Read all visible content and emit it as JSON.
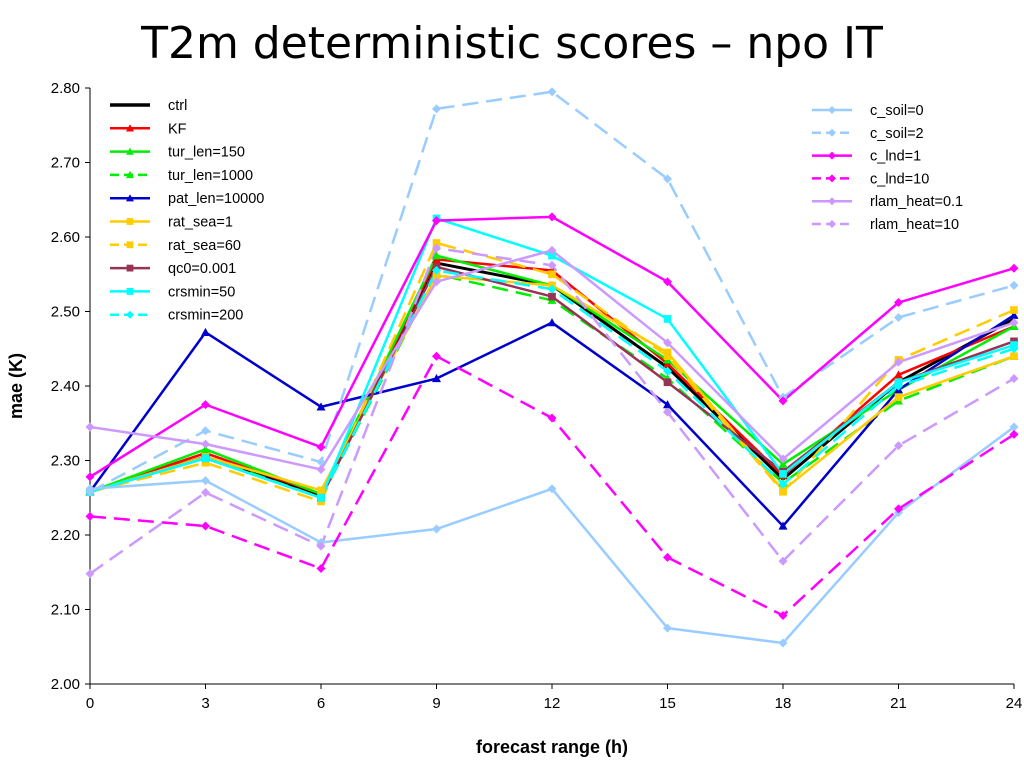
{
  "chart_data": {
    "type": "line",
    "title": "T2m deterministic scores – npo IT",
    "xlabel": "forecast range (h)",
    "ylabel": "mae (K)",
    "x": [
      0,
      3,
      6,
      9,
      12,
      15,
      18,
      21,
      24
    ],
    "xlim": [
      0,
      24
    ],
    "ylim": [
      2.0,
      2.8
    ],
    "yticks": [
      "2.00",
      "2.10",
      "2.20",
      "2.30",
      "2.40",
      "2.50",
      "2.60",
      "2.70",
      "2.80"
    ],
    "xticks": [
      "0",
      "3",
      "6",
      "9",
      "12",
      "15",
      "18",
      "21",
      "24"
    ],
    "grid": false,
    "legend_placement": [
      "top-left",
      "top-right"
    ],
    "series": [
      {
        "name": "ctrl",
        "color": "#000000",
        "dash": "solid",
        "marker": "none",
        "legend": 0,
        "values": [
          2.258,
          2.305,
          2.252,
          2.565,
          2.535,
          2.425,
          2.275,
          2.405,
          2.49
        ]
      },
      {
        "name": "KF",
        "color": "#ff0000",
        "dash": "solid",
        "marker": "triangle",
        "legend": 0,
        "values": [
          2.258,
          2.31,
          2.255,
          2.57,
          2.555,
          2.43,
          2.28,
          2.415,
          2.48
        ]
      },
      {
        "name": "tur_len=150",
        "color": "#00ee00",
        "dash": "solid",
        "marker": "triangle",
        "legend": 0,
        "values": [
          2.258,
          2.315,
          2.255,
          2.575,
          2.535,
          2.435,
          2.295,
          2.395,
          2.48
        ]
      },
      {
        "name": "tur_len=1000",
        "color": "#00ee00",
        "dash": "dashed",
        "marker": "triangle",
        "legend": 0,
        "values": [
          2.258,
          2.305,
          2.25,
          2.55,
          2.515,
          2.41,
          2.27,
          2.38,
          2.44
        ]
      },
      {
        "name": "pat_len=10000",
        "color": "#0000cc",
        "dash": "solid",
        "marker": "triangle",
        "legend": 0,
        "values": [
          2.258,
          2.472,
          2.372,
          2.41,
          2.485,
          2.375,
          2.212,
          2.395,
          2.495
        ]
      },
      {
        "name": "rat_sea=1",
        "color": "#ffcc00",
        "dash": "solid",
        "marker": "square",
        "legend": 0,
        "values": [
          2.258,
          2.305,
          2.26,
          2.548,
          2.535,
          2.445,
          2.26,
          2.385,
          2.44
        ]
      },
      {
        "name": "rat_sea=60",
        "color": "#ffcc00",
        "dash": "dashed",
        "marker": "square",
        "legend": 0,
        "values": [
          2.258,
          2.297,
          2.245,
          2.592,
          2.55,
          2.44,
          2.258,
          2.435,
          2.502
        ]
      },
      {
        "name": "qc0=0.001",
        "color": "#993355",
        "dash": "solid",
        "marker": "square",
        "legend": 0,
        "values": [
          2.258,
          2.303,
          2.25,
          2.56,
          2.52,
          2.405,
          2.285,
          2.405,
          2.46
        ]
      },
      {
        "name": "crsmin=50",
        "color": "#00ffff",
        "dash": "solid",
        "marker": "square",
        "legend": 0,
        "values": [
          2.258,
          2.303,
          2.25,
          2.625,
          2.575,
          2.49,
          2.282,
          2.405,
          2.455
        ]
      },
      {
        "name": "crsmin=200",
        "color": "#00ffff",
        "dash": "dashed",
        "marker": "diamond",
        "legend": 0,
        "values": [
          2.258,
          2.303,
          2.25,
          2.555,
          2.53,
          2.42,
          2.268,
          2.4,
          2.45
        ]
      },
      {
        "name": "c_soil=0",
        "color": "#99ccff",
        "dash": "solid",
        "marker": "diamond",
        "legend": 1,
        "values": [
          2.262,
          2.273,
          2.19,
          2.208,
          2.262,
          2.075,
          2.055,
          2.23,
          2.345
        ]
      },
      {
        "name": "c_soil=2",
        "color": "#99ccff",
        "dash": "dashed",
        "marker": "diamond",
        "legend": 1,
        "values": [
          2.258,
          2.34,
          2.298,
          2.772,
          2.795,
          2.678,
          2.385,
          2.492,
          2.535
        ]
      },
      {
        "name": "c_lnd=1",
        "color": "#ff00ff",
        "dash": "solid",
        "marker": "diamond",
        "legend": 1,
        "values": [
          2.278,
          2.375,
          2.318,
          2.622,
          2.627,
          2.54,
          2.38,
          2.512,
          2.558
        ]
      },
      {
        "name": "c_lnd=10",
        "color": "#ff00ff",
        "dash": "dashed",
        "marker": "diamond",
        "legend": 1,
        "values": [
          2.225,
          2.212,
          2.155,
          2.44,
          2.357,
          2.17,
          2.092,
          2.235,
          2.335
        ]
      },
      {
        "name": "rlam_heat=0.1",
        "color": "#cc99ff",
        "dash": "solid",
        "marker": "diamond",
        "legend": 1,
        "values": [
          2.345,
          2.322,
          2.288,
          2.54,
          2.582,
          2.458,
          2.302,
          2.432,
          2.485
        ]
      },
      {
        "name": "rlam_heat=10",
        "color": "#cc99ff",
        "dash": "dashed",
        "marker": "diamond",
        "legend": 1,
        "values": [
          2.148,
          2.257,
          2.185,
          2.585,
          2.562,
          2.365,
          2.165,
          2.32,
          2.41
        ]
      }
    ]
  }
}
